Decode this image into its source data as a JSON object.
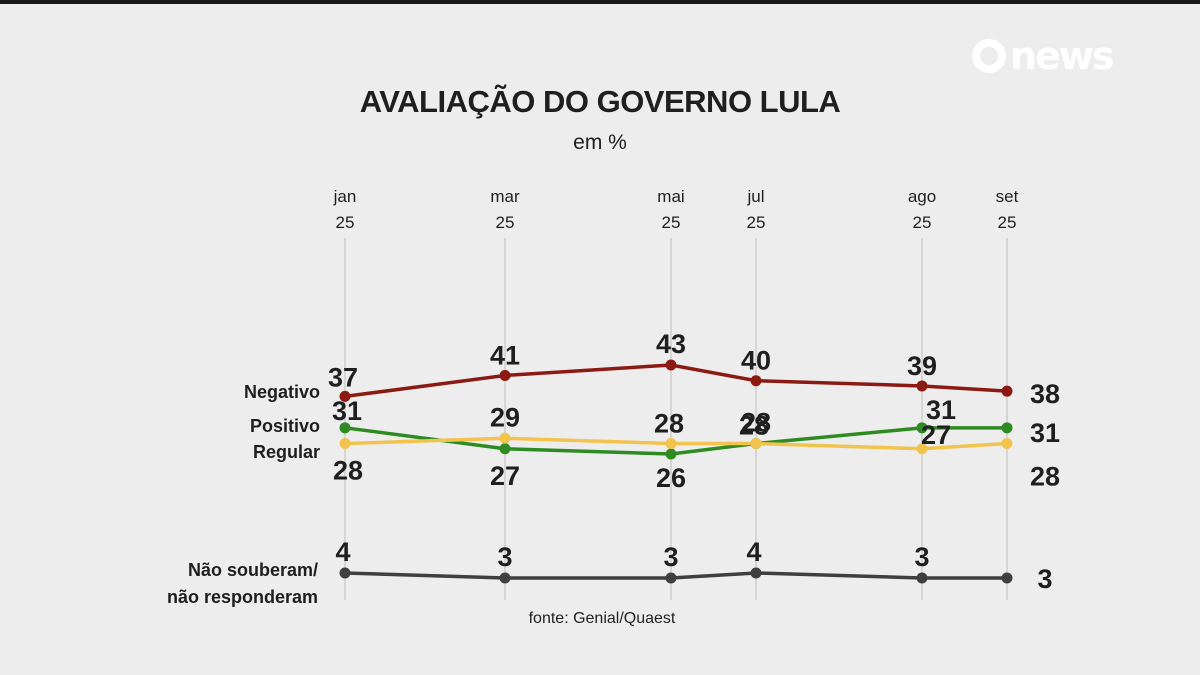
{
  "brand": {
    "logo_text": "news",
    "logo_icon": "globo-circle-icon"
  },
  "chart_data": {
    "type": "line",
    "title": "AVALIAÇÃO DO GOVERNO LULA",
    "subtitle": "em %",
    "source": "fonte: Genial/Quaest",
    "categories": [
      {
        "month": "jan",
        "year": "25"
      },
      {
        "month": "mar",
        "year": "25"
      },
      {
        "month": "mai",
        "year": "25"
      },
      {
        "month": "jul",
        "year": "25"
      },
      {
        "month": "ago",
        "year": "25"
      },
      {
        "month": "set",
        "year": "25"
      }
    ],
    "series": [
      {
        "name": "Negativo",
        "color": "#8b1a12",
        "values": [
          37,
          41,
          43,
          40,
          39,
          38
        ]
      },
      {
        "name": "Positivo",
        "color": "#2e8b22",
        "values": [
          31,
          27,
          26,
          28,
          31,
          31
        ]
      },
      {
        "name": "Regular",
        "color": "#f2c44e",
        "values": [
          28,
          29,
          28,
          28,
          27,
          28
        ]
      },
      {
        "name": "Não souberam/ não responderam",
        "label_lines": [
          "Não souberam/",
          "não responderam"
        ],
        "color": "#3f3f3f",
        "values": [
          4,
          3,
          3,
          4,
          3,
          3
        ]
      }
    ]
  }
}
